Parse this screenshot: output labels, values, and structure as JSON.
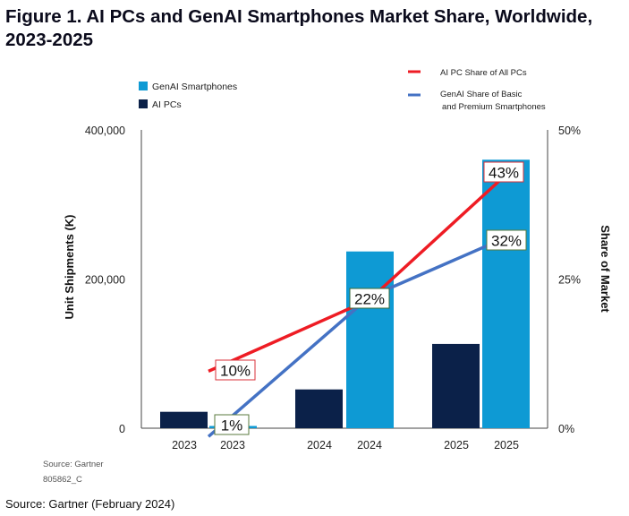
{
  "figure": {
    "title": "Figure 1. AI PCs and GenAI Smartphones Market Share, Worldwide, 2023-2025",
    "source_note": "Source: Gartner",
    "doc_id": "805862_C",
    "footer": "Source: Gartner (February 2024)"
  },
  "colors": {
    "ai_pcs": "#0b2149",
    "genai_smartphones": "#0e9ad4",
    "ai_pc_share_line": "#ee1c24",
    "genai_share_line": "#4472c4",
    "pc_label_border": "#d9323a",
    "phone_label_border": "#5a7a3c"
  },
  "chart_data": {
    "type": "bar",
    "categories": [
      "2023",
      "2024",
      "2025"
    ],
    "series": [
      {
        "name": "AI PCs",
        "values": [
          22000,
          52000,
          113000
        ]
      },
      {
        "name": "GenAI Smartphones",
        "values": [
          3000,
          237000,
          360000
        ]
      }
    ],
    "ylabel": "Unit Shipments (K)",
    "ylim": [
      0,
      400000
    ],
    "yticks": [
      "400,000",
      "200,000",
      "0"
    ],
    "y2label": "Share of Market",
    "y2lim": [
      0,
      50
    ],
    "y2ticks": [
      "50%",
      "25%",
      "0%"
    ],
    "x_tick_labels": [
      "2023",
      "2023",
      "2024",
      "2024",
      "2025",
      "2025"
    ],
    "lines": [
      {
        "name": "AI PC Share of All PCs",
        "axis": "right",
        "values": [
          10,
          22,
          43
        ],
        "labels": [
          "10%",
          "22%",
          "43%"
        ]
      },
      {
        "name": "GenAI Share of Basic and Premium Smartphones",
        "axis": "right",
        "values": [
          1,
          22,
          32
        ],
        "labels": [
          "1%",
          "22%",
          "32%"
        ]
      }
    ],
    "legend_bars": [
      "GenAI Smartphones",
      "AI PCs"
    ],
    "legend_lines": [
      "AI PC Share of All PCs",
      "GenAI Share of Basic",
      "and Premium Smartphones"
    ],
    "grid": false
  }
}
